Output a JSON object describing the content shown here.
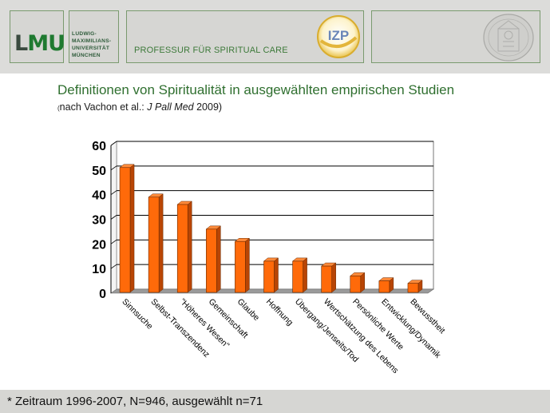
{
  "header": {
    "lmu_logo": "LMU",
    "university_lines": [
      "LUDWIG-",
      "MAXIMILIANS-",
      "UNIVERSITÄT",
      "MÜNCHEN"
    ],
    "professorship": "PROFESSUR FÜR SPIRITUAL  CARE",
    "izp_logo": "IZP"
  },
  "slide": {
    "title": "Definitionen von Spiritualität in ausgewählten empirischen Studien",
    "subtitle_open": "(",
    "subtitle_text": "nach Vachon et al.: ",
    "subtitle_journal": "J Pall Med",
    "subtitle_year": " 2009)"
  },
  "footer": {
    "note": "* Zeitraum 1996-2007, N=946, ausgewählt n=71"
  },
  "colors": {
    "bar_front": "#ff6a0a",
    "bar_side": "#b84505",
    "bar_top": "#ff8a3a",
    "title_green": "#2f6f2f"
  },
  "chart_data": {
    "type": "bar",
    "categories": [
      "Sinnsuche",
      "Selbst-Transzendenz",
      "\"Höheres Wesen\"",
      "Gemeinschaft",
      "Glaube",
      "Hoffnung",
      "Übergang/Jenseits/Tod",
      "Wertschätzung des Lebens",
      "Persönliche Werte",
      "Entwicklung/Dynamik",
      "Bewusstheit"
    ],
    "values": [
      51,
      39,
      36,
      26,
      21,
      13,
      13,
      11,
      7,
      5,
      4
    ],
    "yticks": [
      0,
      10,
      20,
      30,
      40,
      50,
      60
    ],
    "ylim": [
      0,
      60
    ],
    "grid": true,
    "legend": "none",
    "style": "3d-bar"
  }
}
